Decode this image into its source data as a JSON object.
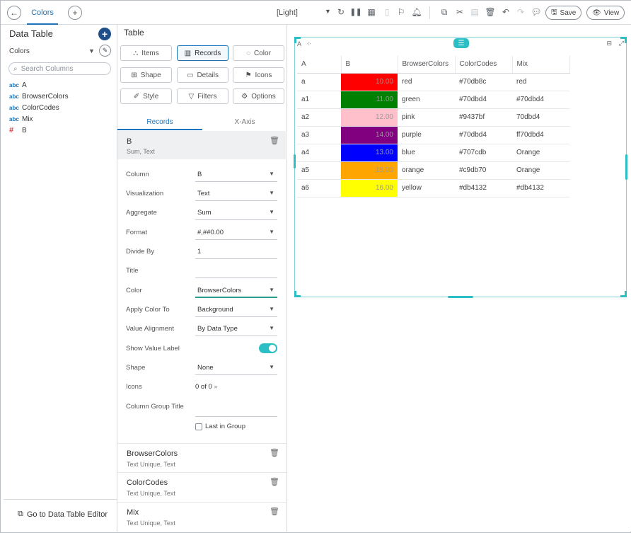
{
  "topbar": {
    "tab_label": "Colors",
    "theme_label": "[Light]",
    "save_label": "Save",
    "view_label": "View"
  },
  "left": {
    "title": "Data Table",
    "table_select": "Colors",
    "search_placeholder": "Search Columns",
    "columns": [
      {
        "type": "abc",
        "name": "A"
      },
      {
        "type": "abc",
        "name": "BrowserColors"
      },
      {
        "type": "abc",
        "name": "ColorCodes"
      },
      {
        "type": "abc",
        "name": "Mix"
      },
      {
        "type": "#",
        "name": "B"
      }
    ],
    "goto_label": "Go to Data Table Editor"
  },
  "mid": {
    "title": "Table",
    "buttons": [
      "Items",
      "Records",
      "Color",
      "Shape",
      "Details",
      "Icons",
      "Style",
      "Filters",
      "Options"
    ],
    "subtabs": [
      "Records",
      "X-Axis"
    ],
    "field": {
      "name": "B",
      "sub": "Sum, Text"
    },
    "settings": {
      "column": {
        "label": "Column",
        "value": "B"
      },
      "visualization": {
        "label": "Visualization",
        "value": "Text"
      },
      "aggregate": {
        "label": "Aggregate",
        "value": "Sum"
      },
      "format": {
        "label": "Format",
        "value": "#,##0.00"
      },
      "divide_by": {
        "label": "Divide By",
        "value": "1"
      },
      "title": {
        "label": "Title",
        "value": ""
      },
      "color": {
        "label": "Color",
        "value": "BrowserColors"
      },
      "apply_color_to": {
        "label": "Apply Color To",
        "value": "Background"
      },
      "value_alignment": {
        "label": "Value Alignment",
        "value": "By Data Type"
      },
      "show_value_label": {
        "label": "Show Value Label",
        "on": true
      },
      "shape": {
        "label": "Shape",
        "value": "None"
      },
      "icons": {
        "label": "Icons",
        "value": "0 of 0"
      },
      "column_group_title": {
        "label": "Column Group Title",
        "value": ""
      },
      "last_in_group": {
        "label": "Last in Group",
        "checked": false
      }
    },
    "other_fields": [
      {
        "name": "BrowserColors",
        "sub": "Text Unique, Text"
      },
      {
        "name": "ColorCodes",
        "sub": "Text Unique, Text"
      },
      {
        "name": "Mix",
        "sub": "Text Unique, Text"
      }
    ]
  },
  "canvas": {
    "headers": [
      "A",
      "B",
      "BrowserColors",
      "ColorCodes",
      "Mix"
    ],
    "rows": [
      {
        "a": "a",
        "b": "10.00",
        "browser": "red",
        "code": "#70db8c",
        "mix": "red",
        "fill": "#ff0000"
      },
      {
        "a": "a1",
        "b": "11.00",
        "browser": "green",
        "code": "#70dbd4",
        "mix": "#70dbd4",
        "fill": "#008000"
      },
      {
        "a": "a2",
        "b": "12.00",
        "browser": "pink",
        "code": "#9437bf",
        "mix": "70dbd4",
        "fill": "#ffc0cb"
      },
      {
        "a": "a3",
        "b": "14.00",
        "browser": "purple",
        "code": "#70dbd4",
        "mix": "ff70dbd4",
        "fill": "#800080"
      },
      {
        "a": "a4",
        "b": "13.00",
        "browser": "blue",
        "code": "#707cdb",
        "mix": "Orange",
        "fill": "#0000ff"
      },
      {
        "a": "a5",
        "b": "15.00",
        "browser": "orange",
        "code": "#c9db70",
        "mix": "Orange",
        "fill": "#ffa500"
      },
      {
        "a": "a6",
        "b": "16.00",
        "browser": "yellow",
        "code": "#db4132",
        "mix": "#db4132",
        "fill": "#ffff00"
      }
    ]
  },
  "colors": {
    "accent": "#1c75bc",
    "teal": "#2bbfc5",
    "add_button": "#1e4f8a"
  }
}
